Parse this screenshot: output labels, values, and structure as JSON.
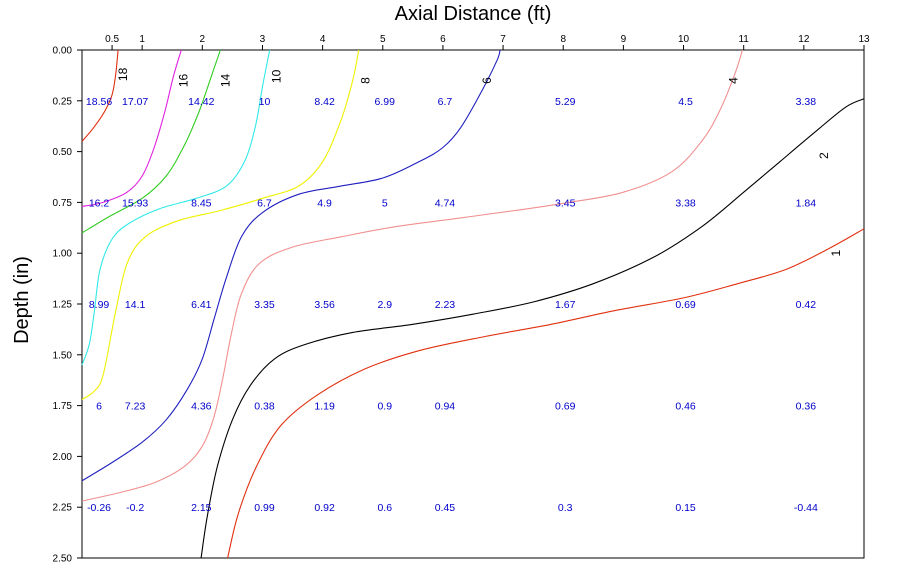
{
  "chart_data": {
    "type": "contour",
    "xlabel": "Axial Distance (ft)",
    "ylabel": "Depth (in)",
    "xlim": [
      0,
      13
    ],
    "ylim": [
      0,
      2.5
    ],
    "x_axis_position": "top",
    "y_axis_inverted": true,
    "x_ticks": [
      {
        "value": 0.5,
        "label": "0.5"
      },
      {
        "value": 1,
        "label": "1"
      },
      {
        "value": 2,
        "label": "2"
      },
      {
        "value": 3,
        "label": "3"
      },
      {
        "value": 4,
        "label": "4"
      },
      {
        "value": 5,
        "label": "5"
      },
      {
        "value": 6,
        "label": "6"
      },
      {
        "value": 7,
        "label": "7"
      },
      {
        "value": 8,
        "label": "8"
      },
      {
        "value": 9,
        "label": "9"
      },
      {
        "value": 10,
        "label": "10"
      },
      {
        "value": 11,
        "label": "11"
      },
      {
        "value": 12,
        "label": "12"
      },
      {
        "value": 13,
        "label": "13"
      }
    ],
    "y_ticks": [
      {
        "value": 0,
        "label": "0.00"
      },
      {
        "value": 0.25,
        "label": "0.25"
      },
      {
        "value": 0.5,
        "label": "0.50"
      },
      {
        "value": 0.75,
        "label": "0.75"
      },
      {
        "value": 1,
        "label": "1.00"
      },
      {
        "value": 1.25,
        "label": "1.25"
      },
      {
        "value": 1.5,
        "label": "1.50"
      },
      {
        "value": 1.75,
        "label": "1.75"
      },
      {
        "value": 2,
        "label": "2.00"
      },
      {
        "value": 2.25,
        "label": "2.25"
      },
      {
        "value": 2.5,
        "label": "2.50"
      }
    ],
    "grid": false,
    "data_label_color": "#0000cc",
    "measurements": {
      "x": [
        0.25,
        0.85,
        1.95,
        3.0,
        4.0,
        5.0,
        6.0,
        8.0,
        10.0,
        12.0
      ],
      "depths": [
        0.25,
        0.75,
        1.25,
        1.75,
        2.25
      ],
      "values": [
        [
          "18.56",
          "17.07",
          "14.42",
          "10",
          "8.42",
          "6.99",
          "6.7",
          "5.29",
          "4.5",
          "3.38"
        ],
        [
          "16.2",
          "15.93",
          "8.45",
          "6.7",
          "4.9",
          "5",
          "4.74",
          "3.45",
          "3.38",
          "1.84"
        ],
        [
          "8.99",
          "14.1",
          "6.41",
          "3.35",
          "3.56",
          "2.9",
          "2.23",
          "1.67",
          "0.69",
          "0.42"
        ],
        [
          "6",
          "7.23",
          "4.36",
          "0.38",
          "1.19",
          "0.9",
          "0.94",
          "0.69",
          "0.46",
          "0.36"
        ],
        [
          "-0.26",
          "-0.2",
          "2.15",
          "0.99",
          "0.92",
          "0.6",
          "0.45",
          "0.3",
          "0.15",
          "-0.44"
        ]
      ]
    },
    "contours": [
      {
        "level": "18",
        "color": "#e03010",
        "points": [
          [
            0.0,
            0.45
          ],
          [
            0.2,
            0.38
          ],
          [
            0.38,
            0.3
          ],
          [
            0.5,
            0.22
          ],
          [
            0.56,
            0.12
          ],
          [
            0.6,
            0.0
          ]
        ],
        "label_pos": [
          0.75,
          0.12
        ]
      },
      {
        "level": "16",
        "color": "#e020e0",
        "points": [
          [
            0.0,
            0.77
          ],
          [
            0.35,
            0.75
          ],
          [
            0.75,
            0.7
          ],
          [
            1.0,
            0.62
          ],
          [
            1.2,
            0.48
          ],
          [
            1.38,
            0.3
          ],
          [
            1.52,
            0.13
          ],
          [
            1.65,
            0.0
          ]
        ],
        "label_pos": [
          1.75,
          0.15
        ]
      },
      {
        "level": "14",
        "color": "#30cc20",
        "points": [
          [
            0.0,
            0.9
          ],
          [
            0.45,
            0.82
          ],
          [
            1.0,
            0.73
          ],
          [
            1.4,
            0.62
          ],
          [
            1.7,
            0.47
          ],
          [
            1.95,
            0.3
          ],
          [
            2.15,
            0.13
          ],
          [
            2.3,
            0.0
          ]
        ],
        "label_pos": [
          2.45,
          0.15
        ]
      },
      {
        "level": "10",
        "color": "#30e8e8",
        "points": [
          [
            0.0,
            1.55
          ],
          [
            0.12,
            1.45
          ],
          [
            0.2,
            1.3
          ],
          [
            0.3,
            1.08
          ],
          [
            0.5,
            0.93
          ],
          [
            0.8,
            0.85
          ],
          [
            1.3,
            0.78
          ],
          [
            1.9,
            0.73
          ],
          [
            2.4,
            0.67
          ],
          [
            2.7,
            0.55
          ],
          [
            2.88,
            0.38
          ],
          [
            3.0,
            0.18
          ],
          [
            3.12,
            0.0
          ]
        ],
        "label_pos": [
          3.3,
          0.13
        ]
      },
      {
        "level": "8",
        "color": "#f0f000",
        "points": [
          [
            0.0,
            1.72
          ],
          [
            0.2,
            1.68
          ],
          [
            0.35,
            1.6
          ],
          [
            0.55,
            1.3
          ],
          [
            0.75,
            1.05
          ],
          [
            1.05,
            0.92
          ],
          [
            1.6,
            0.84
          ],
          [
            2.3,
            0.79
          ],
          [
            3.0,
            0.73
          ],
          [
            3.6,
            0.67
          ],
          [
            4.0,
            0.55
          ],
          [
            4.3,
            0.35
          ],
          [
            4.5,
            0.15
          ],
          [
            4.6,
            0.0
          ]
        ],
        "label_pos": [
          4.78,
          0.15
        ]
      },
      {
        "level": "6",
        "color": "#2020c0",
        "points": [
          [
            0.0,
            2.12
          ],
          [
            0.5,
            2.03
          ],
          [
            1.0,
            1.93
          ],
          [
            1.4,
            1.82
          ],
          [
            1.75,
            1.67
          ],
          [
            2.0,
            1.52
          ],
          [
            2.2,
            1.32
          ],
          [
            2.4,
            1.12
          ],
          [
            2.65,
            0.92
          ],
          [
            3.0,
            0.8
          ],
          [
            3.6,
            0.71
          ],
          [
            4.3,
            0.67
          ],
          [
            5.0,
            0.63
          ],
          [
            5.6,
            0.55
          ],
          [
            6.0,
            0.48
          ],
          [
            6.3,
            0.38
          ],
          [
            6.65,
            0.2
          ],
          [
            6.9,
            0.05
          ],
          [
            6.95,
            0.0
          ]
        ],
        "label_pos": [
          6.8,
          0.15
        ]
      },
      {
        "level": "4",
        "color": "#f09090",
        "points": [
          [
            0.0,
            2.22
          ],
          [
            0.6,
            2.18
          ],
          [
            1.2,
            2.13
          ],
          [
            1.7,
            2.05
          ],
          [
            2.0,
            1.95
          ],
          [
            2.2,
            1.8
          ],
          [
            2.35,
            1.6
          ],
          [
            2.48,
            1.4
          ],
          [
            2.65,
            1.2
          ],
          [
            2.95,
            1.05
          ],
          [
            3.5,
            0.97
          ],
          [
            4.3,
            0.92
          ],
          [
            5.2,
            0.87
          ],
          [
            6.2,
            0.83
          ],
          [
            7.2,
            0.79
          ],
          [
            8.1,
            0.75
          ],
          [
            9.0,
            0.7
          ],
          [
            9.8,
            0.6
          ],
          [
            10.3,
            0.45
          ],
          [
            10.6,
            0.3
          ],
          [
            10.85,
            0.12
          ],
          [
            10.98,
            0.0
          ]
        ],
        "label_pos": [
          10.9,
          0.15
        ]
      },
      {
        "level": "2",
        "color": "#000000",
        "points": [
          [
            1.98,
            2.5
          ],
          [
            2.08,
            2.3
          ],
          [
            2.25,
            2.05
          ],
          [
            2.5,
            1.82
          ],
          [
            2.8,
            1.65
          ],
          [
            3.2,
            1.52
          ],
          [
            3.7,
            1.45
          ],
          [
            4.5,
            1.39
          ],
          [
            5.5,
            1.35
          ],
          [
            6.5,
            1.3
          ],
          [
            7.5,
            1.24
          ],
          [
            8.5,
            1.15
          ],
          [
            9.5,
            1.02
          ],
          [
            10.3,
            0.87
          ],
          [
            11.0,
            0.7
          ],
          [
            11.6,
            0.55
          ],
          [
            12.2,
            0.4
          ],
          [
            12.7,
            0.28
          ],
          [
            13.0,
            0.24
          ]
        ],
        "label_pos": [
          12.4,
          0.52
        ]
      },
      {
        "level": "1",
        "color": "#e03010",
        "points": [
          [
            2.42,
            2.5
          ],
          [
            2.6,
            2.28
          ],
          [
            2.9,
            2.05
          ],
          [
            3.3,
            1.85
          ],
          [
            3.9,
            1.7
          ],
          [
            4.7,
            1.57
          ],
          [
            5.6,
            1.48
          ],
          [
            6.7,
            1.41
          ],
          [
            7.8,
            1.35
          ],
          [
            8.9,
            1.28
          ],
          [
            10.0,
            1.22
          ],
          [
            10.9,
            1.15
          ],
          [
            11.7,
            1.08
          ],
          [
            12.4,
            0.98
          ],
          [
            13.0,
            0.88
          ]
        ],
        "label_pos": [
          12.6,
          1.0
        ]
      }
    ]
  }
}
